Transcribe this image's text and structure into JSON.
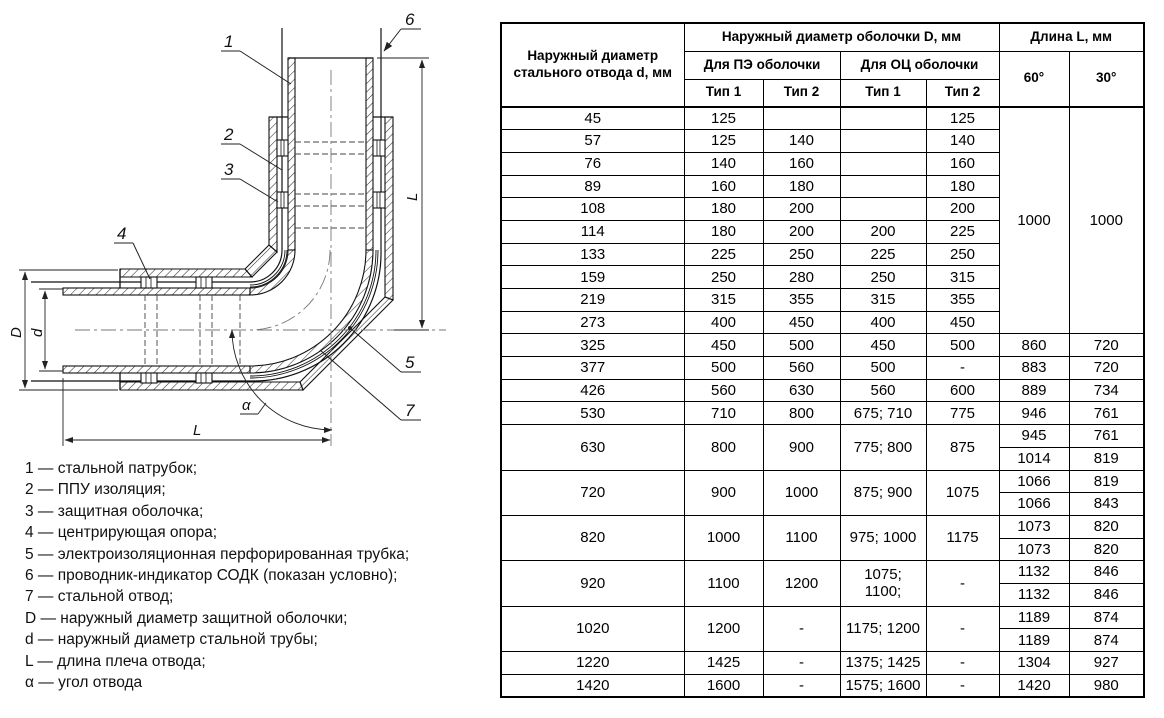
{
  "drawing": {
    "callouts": {
      "c1": "1",
      "c2": "2",
      "c3": "3",
      "c4": "4",
      "c5": "5",
      "c6": "6",
      "c7": "7"
    },
    "dims": {
      "D": "D",
      "d": "d",
      "L_right": "L",
      "L_bottom": "L",
      "alpha": "α"
    },
    "legend": [
      "1 — стальной патрубок;",
      "2 — ППУ изоляция;",
      "3 — защитная оболочка;",
      "4 — центрирующая опора;",
      "5 — электроизоляционная перфорированная трубка;",
      "6 — проводник-индикатор СОДК (показан условно);",
      "7 — стальной отвод;",
      "D — наружный диаметр защитной оболочки;",
      "d — наружный диаметр стальной трубы;",
      "L — длина плеча отвода;",
      "α — угол отвода"
    ]
  },
  "table": {
    "col1_header": "Наружный диаметр\nстального отвода d, мм",
    "group_D": "Наружный диаметр оболочки D, мм",
    "group_L": "Длина L, мм",
    "pe_group": "Для ПЭ оболочки",
    "oc_group": "Для ОЦ оболочки",
    "type1": "Тип 1",
    "type2": "Тип 2",
    "deg60": "60°",
    "deg30": "30°",
    "rows": [
      [
        "45",
        "125",
        "",
        "",
        "125",
        {
          "t": "1000",
          "rs": 10
        },
        {
          "t": "1000",
          "rs": 10
        }
      ],
      [
        "57",
        "125",
        "140",
        "",
        "140",
        null,
        null
      ],
      [
        "76",
        "140",
        "160",
        "",
        "160",
        null,
        null
      ],
      [
        "89",
        "160",
        "180",
        "",
        "180",
        null,
        null
      ],
      [
        "108",
        "180",
        "200",
        "",
        "200",
        null,
        null
      ],
      [
        "114",
        "180",
        "200",
        "200",
        "225",
        null,
        null
      ],
      [
        "133",
        "225",
        "250",
        "225",
        "250",
        null,
        null
      ],
      [
        "159",
        "250",
        "280",
        "250",
        "315",
        null,
        null
      ],
      [
        "219",
        "315",
        "355",
        "315",
        "355",
        null,
        null
      ],
      [
        "273",
        "400",
        "450",
        "400",
        "450",
        null,
        null
      ],
      [
        "325",
        "450",
        "500",
        "450",
        "500",
        "860",
        "720"
      ],
      [
        "377",
        "500",
        "560",
        "500",
        "-",
        "883",
        "720"
      ],
      [
        "426",
        "560",
        "630",
        "560",
        "600",
        "889",
        "734"
      ],
      [
        "530",
        "710",
        "800",
        "675; 710",
        "775",
        "946",
        "761"
      ],
      [
        {
          "t": "630",
          "rs": 2
        },
        {
          "t": "800",
          "rs": 2
        },
        {
          "t": "900",
          "rs": 2
        },
        {
          "t": "775; 800",
          "rs": 2
        },
        {
          "t": "875",
          "rs": 2
        },
        "945",
        "761"
      ],
      [
        null,
        null,
        null,
        null,
        null,
        "1014",
        "819"
      ],
      [
        {
          "t": "720",
          "rs": 2
        },
        {
          "t": "900",
          "rs": 2
        },
        {
          "t": "1000",
          "rs": 2
        },
        {
          "t": "875; 900",
          "rs": 2
        },
        {
          "t": "1075",
          "rs": 2
        },
        "1066",
        "819"
      ],
      [
        null,
        null,
        null,
        null,
        null,
        "1066",
        "843"
      ],
      [
        {
          "t": "820",
          "rs": 2
        },
        {
          "t": "1000",
          "rs": 2
        },
        {
          "t": "1100",
          "rs": 2
        },
        {
          "t": "975; 1000",
          "rs": 2
        },
        {
          "t": "1175",
          "rs": 2
        },
        "1073",
        "820"
      ],
      [
        null,
        null,
        null,
        null,
        null,
        "1073",
        "820"
      ],
      [
        {
          "t": "920",
          "rs": 2
        },
        {
          "t": "1100",
          "rs": 2
        },
        {
          "t": "1200",
          "rs": 2
        },
        {
          "t": "1075;\n1100;",
          "rs": 2
        },
        {
          "t": "-",
          "rs": 2
        },
        "1132",
        "846"
      ],
      [
        null,
        null,
        null,
        null,
        null,
        "1132",
        "846"
      ],
      [
        {
          "t": "1020",
          "rs": 2
        },
        {
          "t": "1200",
          "rs": 2
        },
        {
          "t": "-",
          "rs": 2
        },
        {
          "t": "1175; 1200",
          "rs": 2
        },
        {
          "t": "-",
          "rs": 2
        },
        "1189",
        "874"
      ],
      [
        null,
        null,
        null,
        null,
        null,
        "1189",
        "874"
      ],
      [
        "1220",
        "1425",
        "-",
        "1375; 1425",
        "-",
        "1304",
        "927"
      ],
      [
        "1420",
        "1600",
        "-",
        "1575; 1600",
        "-",
        "1420",
        "980"
      ]
    ]
  }
}
